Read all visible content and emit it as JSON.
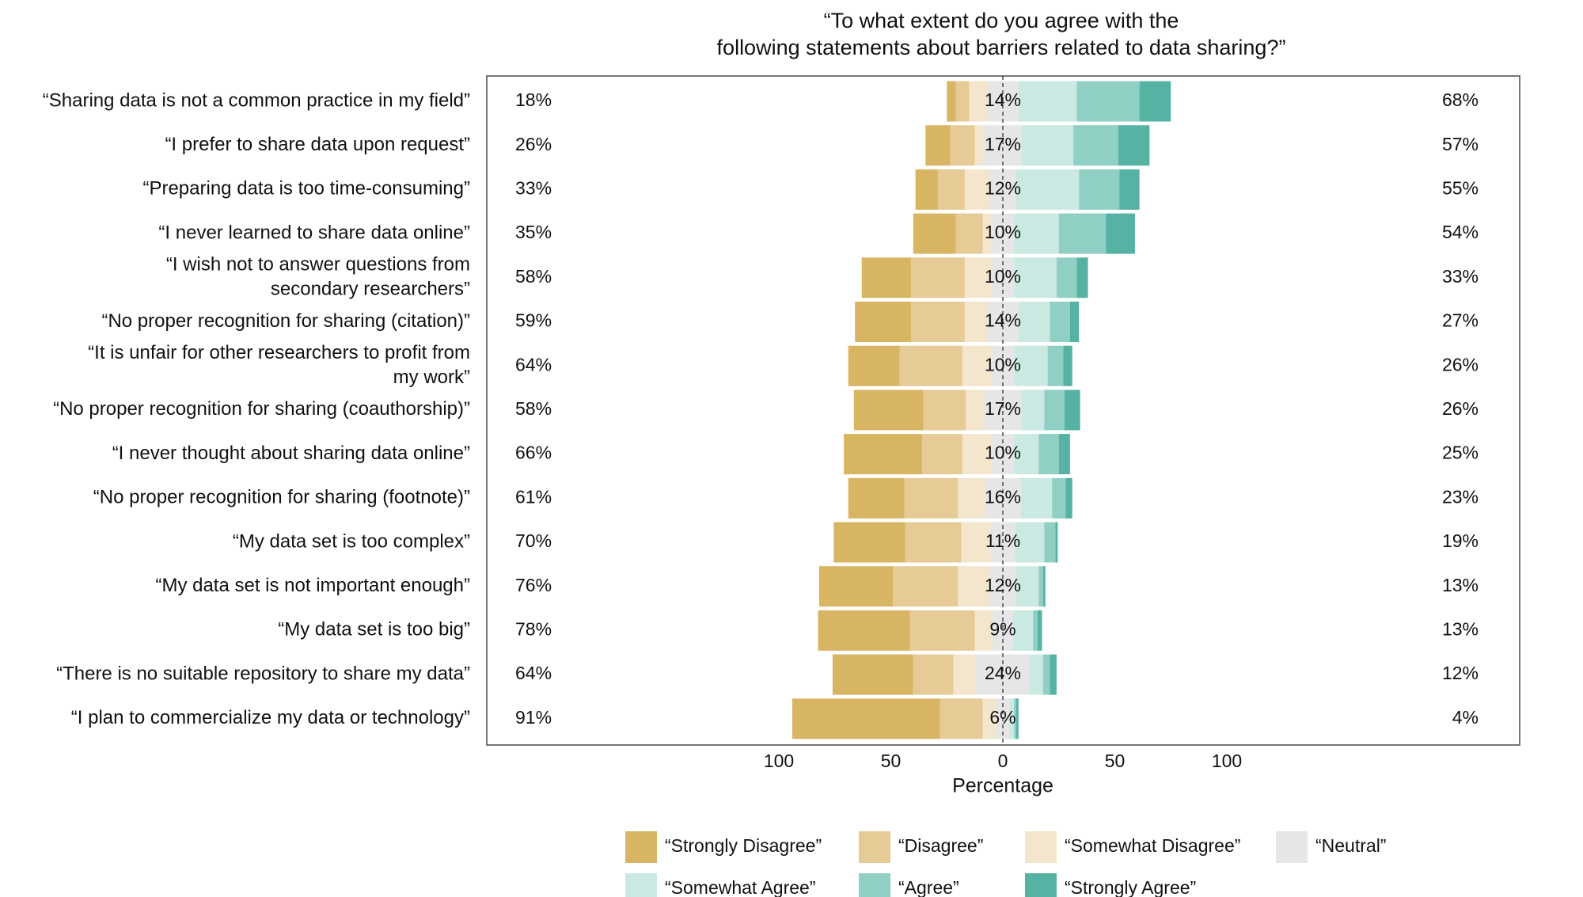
{
  "chart_data": {
    "type": "bar",
    "subtype": "diverging-stacked-likert",
    "title_lines": [
      "“To what extent do you agree with the",
      "following statements about barriers related to data sharing?”"
    ],
    "xlabel": "Percentage",
    "xticks": [
      "100",
      "50",
      "0",
      "50",
      "100"
    ],
    "xlim": [
      -100,
      100
    ],
    "grid": false,
    "legend_position": "bottom",
    "series": [
      {
        "name": "“Strongly Disagree”",
        "color": "#d8b563"
      },
      {
        "name": "“Disagree”",
        "color": "#e7cb96"
      },
      {
        "name": "“Somewhat Disagree”",
        "color": "#f3e6cd"
      },
      {
        "name": "“Neutral”",
        "color": "#e6e6e6"
      },
      {
        "name": "“Somewhat Agree”",
        "color": "#cae9e2"
      },
      {
        "name": "“Agree”",
        "color": "#8fcfc4"
      },
      {
        "name": "“Strongly Agree”",
        "color": "#56b3a3"
      }
    ],
    "statements": [
      {
        "lines": [
          "“Sharing data is not a common practice in my field”"
        ],
        "values": [
          4,
          6,
          8,
          14,
          26,
          28,
          14
        ],
        "disagree_label": "18%",
        "neutral_label": "14%",
        "agree_label": "68%"
      },
      {
        "lines": [
          "“I prefer to share data upon request”"
        ],
        "values": [
          11,
          11,
          4,
          17,
          23,
          20,
          14
        ],
        "disagree_label": "26%",
        "neutral_label": "17%",
        "agree_label": "57%"
      },
      {
        "lines": [
          "“Preparing data is too time-consuming”"
        ],
        "values": [
          10,
          12,
          11,
          12,
          28,
          18,
          9
        ],
        "disagree_label": "33%",
        "neutral_label": "12%",
        "agree_label": "55%"
      },
      {
        "lines": [
          "“I never learned to share data online”"
        ],
        "values": [
          19,
          12,
          4,
          10,
          20,
          21,
          13
        ],
        "disagree_label": "35%",
        "neutral_label": "10%",
        "agree_label": "54%"
      },
      {
        "lines": [
          "“I wish not to answer questions from",
          "secondary researchers”"
        ],
        "values": [
          22,
          24,
          12,
          10,
          19,
          9,
          5
        ],
        "disagree_label": "58%",
        "neutral_label": "10%",
        "agree_label": "33%"
      },
      {
        "lines": [
          "“No proper recognition for sharing (citation)”"
        ],
        "values": [
          25,
          24,
          10,
          14,
          14,
          9,
          4
        ],
        "disagree_label": "59%",
        "neutral_label": "14%",
        "agree_label": "27%"
      },
      {
        "lines": [
          "“It is unfair for other researchers to profit from",
          "my work”"
        ],
        "values": [
          23,
          28,
          13,
          10,
          15,
          7,
          4
        ],
        "disagree_label": "64%",
        "neutral_label": "10%",
        "agree_label": "26%"
      },
      {
        "lines": [
          "“No proper recognition for sharing (coauthorship)”"
        ],
        "values": [
          31,
          19,
          8,
          17,
          10,
          9,
          7
        ],
        "disagree_label": "58%",
        "neutral_label": "17%",
        "agree_label": "26%"
      },
      {
        "lines": [
          "“I never thought about sharing data online”"
        ],
        "values": [
          35,
          18,
          13,
          10,
          11,
          9,
          5
        ],
        "disagree_label": "66%",
        "neutral_label": "10%",
        "agree_label": "25%"
      },
      {
        "lines": [
          "“No proper recognition for sharing (footnote)”"
        ],
        "values": [
          25,
          24,
          12,
          16,
          14,
          6,
          3
        ],
        "disagree_label": "61%",
        "neutral_label": "16%",
        "agree_label": "23%"
      },
      {
        "lines": [
          "“My data set is too complex”"
        ],
        "values": [
          32,
          25,
          13,
          11,
          13,
          5,
          1
        ],
        "disagree_label": "70%",
        "neutral_label": "11%",
        "agree_label": "19%"
      },
      {
        "lines": [
          "“My data set is not important enough”"
        ],
        "values": [
          33,
          29,
          14,
          12,
          10,
          2,
          1
        ],
        "disagree_label": "76%",
        "neutral_label": "12%",
        "agree_label": "13%"
      },
      {
        "lines": [
          "“My data set is too big”"
        ],
        "values": [
          41,
          29,
          8,
          9,
          9,
          2,
          2
        ],
        "disagree_label": "78%",
        "neutral_label": "9%",
        "agree_label": "13%"
      },
      {
        "lines": [
          "“There is no suitable repository to share my data”"
        ],
        "values": [
          36,
          18,
          10,
          24,
          6,
          3,
          3
        ],
        "disagree_label": "64%",
        "neutral_label": "24%",
        "agree_label": "12%"
      },
      {
        "lines": [
          "“I plan to commercialize my data or technology”"
        ],
        "values": [
          66,
          19,
          6,
          6,
          2,
          1,
          1
        ],
        "disagree_label": "91%",
        "neutral_label": "6%",
        "agree_label": "4%"
      }
    ]
  }
}
